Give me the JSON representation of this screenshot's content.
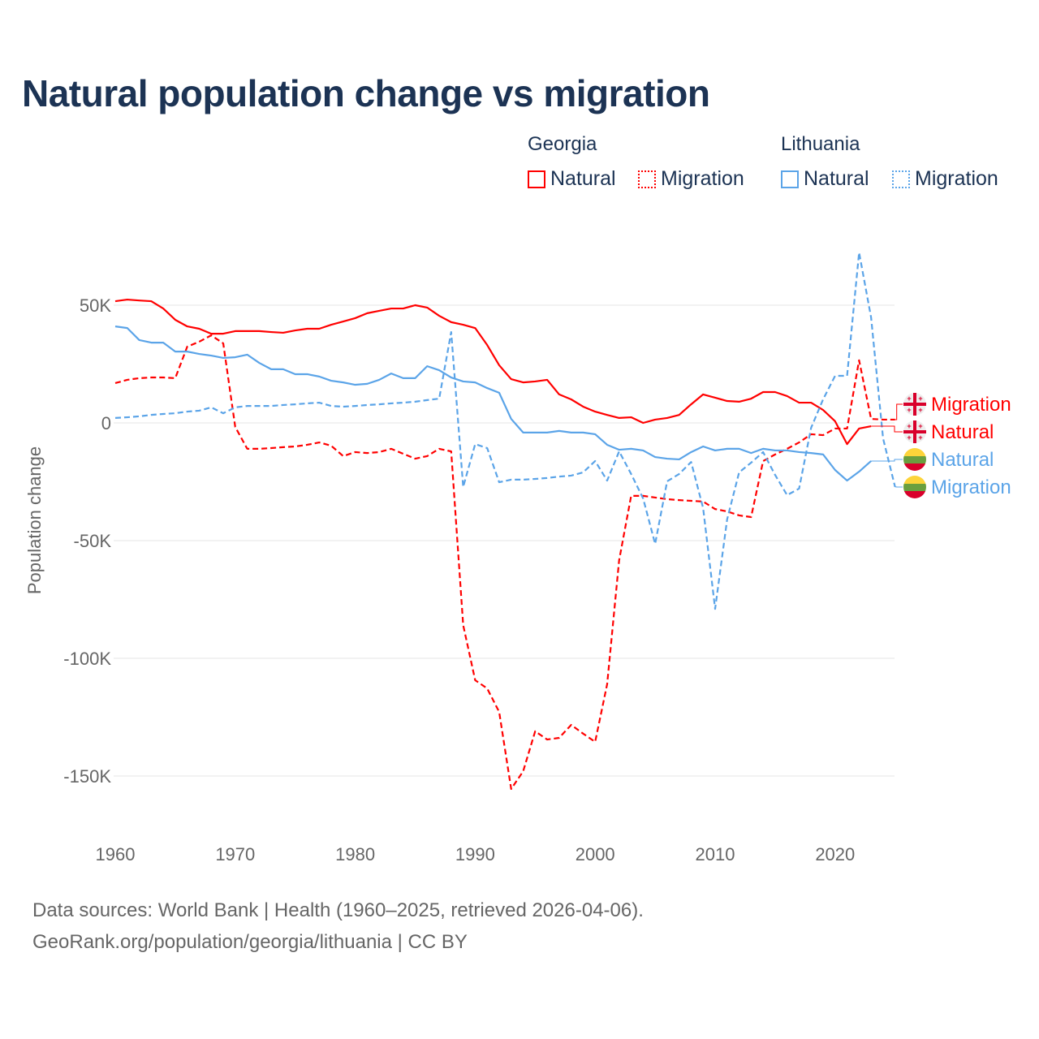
{
  "title": "Natural population change vs migration",
  "legend": {
    "groups": [
      {
        "name": "Georgia",
        "color": "#ff0000",
        "items": [
          "Natural",
          "Migration"
        ]
      },
      {
        "name": "Lithuania",
        "color": "#5ba4e8",
        "items": [
          "Natural",
          "Migration"
        ]
      }
    ]
  },
  "footer": {
    "line1": "Data sources: World Bank | Health (1960–2025, retrieved 2026-04-06).",
    "line2": "GeoRank.org/population/georgia/lithuania | CC BY"
  },
  "chart_data": {
    "type": "line",
    "title": "Natural population change vs migration",
    "xlabel": "",
    "ylabel": "Population change",
    "xlim": [
      1960,
      2025
    ],
    "ylim": [
      -160000,
      75000
    ],
    "x_ticks": [
      1960,
      1970,
      1980,
      1990,
      2000,
      2010,
      2020
    ],
    "x_tick_labels": [
      "1960",
      "1970",
      "1980",
      "1990",
      "2000",
      "2010",
      "2020"
    ],
    "y_ticks": [
      50000,
      0,
      -50000,
      -100000,
      -150000
    ],
    "y_tick_labels": [
      "50K",
      "0",
      "-50K",
      "-100K",
      "-150K"
    ],
    "grid": true,
    "series": [
      {
        "name": "Georgia Natural",
        "label": "Natural",
        "country": "Georgia",
        "flag": "georgia-flag-icon",
        "color": "#ff0000",
        "dash": false,
        "start_year": 1960,
        "values_k": [
          51.7,
          52.4,
          52,
          51.7,
          48.6,
          43.8,
          41,
          40,
          37.9,
          37.9,
          39,
          39,
          39,
          38.6,
          38.3,
          39.3,
          40,
          40,
          41.7,
          43.1,
          44.5,
          46.6,
          47.6,
          48.6,
          48.6,
          50,
          49,
          45.5,
          42.8,
          41.7,
          40.3,
          33.1,
          24.5,
          18.6,
          17.2,
          17.6,
          18.3,
          12.1,
          10,
          6.9,
          4.8,
          3.4,
          2.1,
          2.4,
          0,
          1.4,
          2.1,
          3.4,
          7.9,
          12.1,
          10.7,
          9.3,
          9,
          10.3,
          13.1,
          13.1,
          11.4,
          8.6,
          8.6,
          5.5,
          0.7,
          -9,
          -2.4,
          -1.4
        ]
      },
      {
        "name": "Georgia Migration",
        "label": "Migration",
        "country": "Georgia",
        "flag": "georgia-flag-icon",
        "color": "#ff0000",
        "dash": true,
        "start_year": 1960,
        "values_k": [
          16.9,
          18.3,
          19,
          19.3,
          19.3,
          19,
          32.4,
          34.5,
          37.2,
          33.8,
          -1.7,
          -11,
          -11,
          -10.7,
          -10.3,
          -10,
          -9.3,
          -8.3,
          -9.7,
          -14.1,
          -12.4,
          -12.8,
          -12.4,
          -11,
          -13.1,
          -15.2,
          -14.1,
          -11,
          -12.1,
          -85.9,
          -109.3,
          -112.8,
          -122.8,
          -155.5,
          -148,
          -131,
          -134.5,
          -133.8,
          -128.3,
          -132,
          -135.5,
          -111,
          -58.3,
          -31,
          -31,
          -31.7,
          -32.4,
          -32.8,
          -33.1,
          -33.4,
          -36.6,
          -37.6,
          -39.3,
          -40,
          -16.2,
          -13.4,
          -11,
          -8.3,
          -4.8,
          -5.2,
          -2.4,
          -2.4,
          26.6,
          1.7,
          1.4,
          1.4
        ]
      },
      {
        "name": "Lithuania Natural",
        "label": "Natural",
        "country": "Lithuania",
        "flag": "lithuania-flag-icon",
        "color": "#5ba4e8",
        "dash": false,
        "start_year": 1960,
        "values_k": [
          41,
          40.3,
          35.2,
          34.1,
          34.1,
          30.3,
          30.3,
          29.3,
          28.6,
          27.6,
          27.9,
          29,
          25.5,
          22.8,
          22.8,
          20.7,
          20.7,
          19.7,
          17.9,
          17.2,
          16.2,
          16.6,
          18.3,
          21,
          19,
          19,
          24.1,
          22.4,
          19.3,
          17.6,
          17.2,
          14.8,
          12.8,
          1.7,
          -4.1,
          -4.1,
          -4.1,
          -3.4,
          -4.1,
          -4.1,
          -4.8,
          -9.3,
          -11.4,
          -11,
          -11.7,
          -14.5,
          -15.2,
          -15.5,
          -12.4,
          -10,
          -11.7,
          -11,
          -11,
          -12.8,
          -11,
          -11.7,
          -11.7,
          -12.4,
          -12.8,
          -13.4,
          -20,
          -24.5,
          -20.7,
          -16.2
        ]
      },
      {
        "name": "Lithuania Migration",
        "label": "Migration",
        "country": "Lithuania",
        "flag": "lithuania-flag-icon",
        "color": "#5ba4e8",
        "dash": true,
        "start_year": 1960,
        "values_k": [
          2.1,
          2.4,
          2.8,
          3.4,
          3.8,
          4.1,
          4.8,
          5.2,
          6.6,
          4.1,
          6.6,
          7.2,
          7.2,
          7.2,
          7.6,
          7.9,
          8.3,
          8.6,
          7.2,
          6.9,
          7.2,
          7.6,
          7.9,
          8.3,
          8.6,
          9,
          9.7,
          10.3,
          38.6,
          -27.2,
          -9,
          -10.7,
          -25.2,
          -24.1,
          -24.1,
          -23.8,
          -23.4,
          -22.8,
          -22.4,
          -21,
          -16.2,
          -24.5,
          -12.1,
          -21.7,
          -32.1,
          -51.4,
          -24.8,
          -21.7,
          -16.6,
          -36.2,
          -79,
          -41,
          -21,
          -16.9,
          -12.4,
          -22.1,
          -30.7,
          -27.9,
          -2.1,
          10,
          20,
          20,
          72.4,
          44.8,
          -6.6,
          -27.2
        ]
      }
    ],
    "end_label_order": [
      "Georgia Migration",
      "Georgia Natural",
      "Lithuania Natural",
      "Lithuania Migration"
    ]
  }
}
